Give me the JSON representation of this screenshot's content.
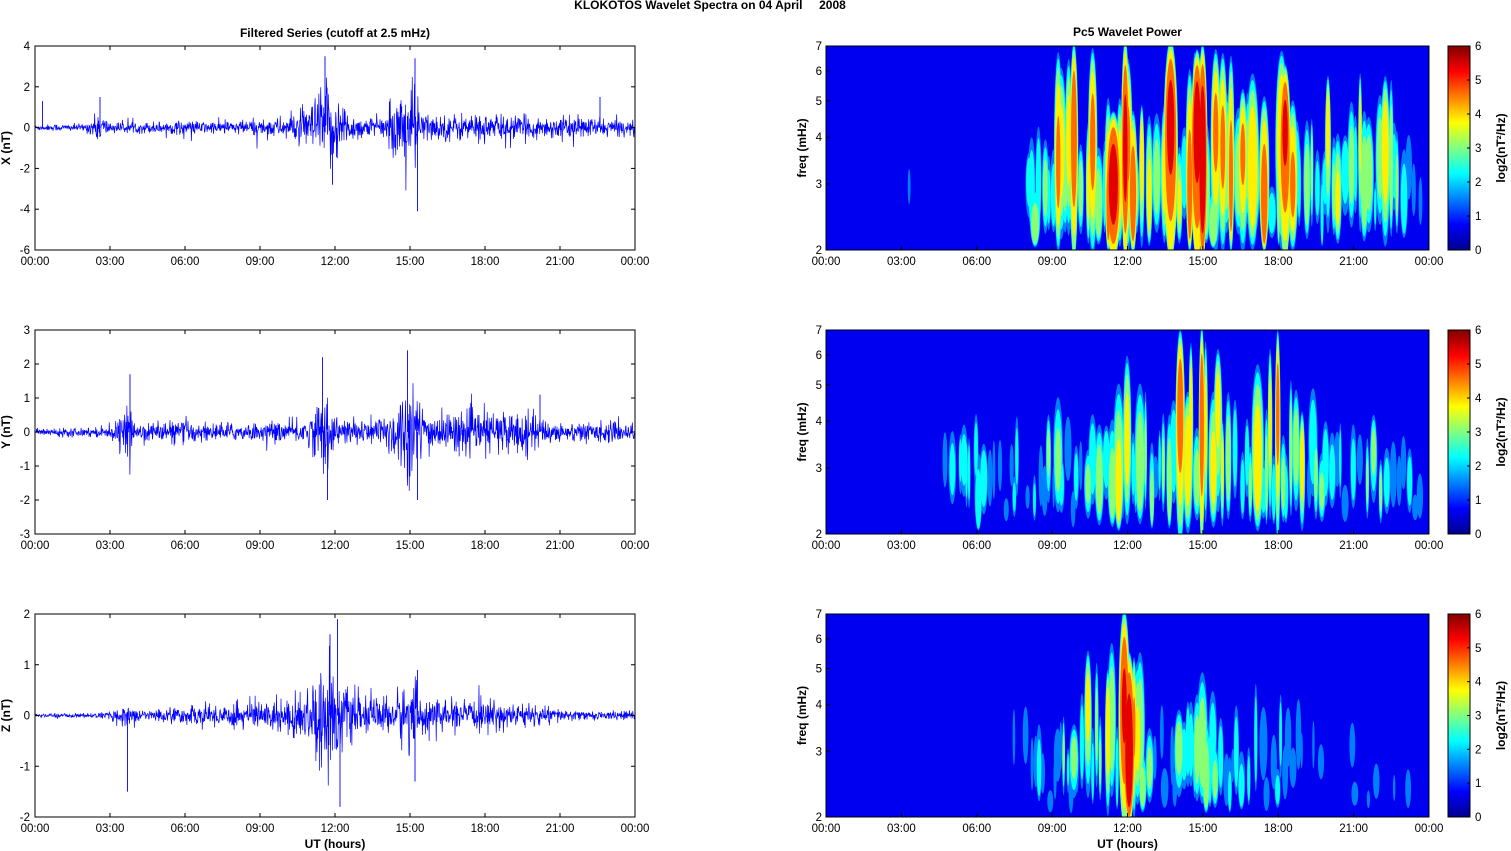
{
  "figure_title": "KLOKOTOS Wavelet Spectra on 04 April     2008",
  "colors": {
    "trace": "#0000ff",
    "frame": "#000000"
  },
  "chart_data": [
    {
      "type": "line",
      "title": "Filtered Series (cutoff at 2.5 mHz)",
      "ylabel": "X (nT)",
      "xlabel": "",
      "xlim": [
        "00:00",
        "24:00"
      ],
      "x_ticks": [
        "00:00",
        "03:00",
        "06:00",
        "09:00",
        "12:00",
        "15:00",
        "18:00",
        "21:00",
        "00:00"
      ],
      "ylim": [
        -6,
        4
      ],
      "y_ticks": [
        "-6",
        "-4",
        "-2",
        "0",
        "2",
        "4"
      ],
      "grid": false,
      "envelope": {
        "x_hours": [
          0,
          1,
          2,
          2.6,
          3,
          4,
          5,
          6,
          7,
          8,
          9,
          10,
          11,
          11.5,
          12,
          12.5,
          13,
          14,
          14.8,
          15.2,
          15.5,
          16,
          17,
          18,
          19,
          20,
          21,
          22,
          23,
          24
        ],
        "amplitude_nT": [
          0.15,
          0.2,
          0.2,
          0.9,
          0.3,
          0.3,
          0.35,
          0.4,
          0.35,
          0.4,
          0.5,
          0.6,
          1.2,
          2.5,
          2.2,
          1.0,
          0.6,
          0.6,
          2.6,
          2.5,
          0.9,
          0.7,
          0.8,
          0.8,
          0.7,
          0.6,
          0.6,
          0.6,
          0.5,
          0.4
        ]
      },
      "peaks": [
        {
          "t": 11.6,
          "v": 3.5
        },
        {
          "t": 11.9,
          "v": -2.8
        },
        {
          "t": 15.2,
          "v": 3.4
        },
        {
          "t": 15.3,
          "v": -4.1
        },
        {
          "t": 2.6,
          "v": 1.5
        },
        {
          "t": 0.3,
          "v": 1.3
        },
        {
          "t": 22.6,
          "v": 1.5
        }
      ]
    },
    {
      "type": "line",
      "title": "",
      "ylabel": "Y (nT)",
      "xlabel": "",
      "xlim": [
        "00:00",
        "24:00"
      ],
      "x_ticks": [
        "00:00",
        "03:00",
        "06:00",
        "09:00",
        "12:00",
        "15:00",
        "18:00",
        "21:00",
        "00:00"
      ],
      "ylim": [
        -3,
        3
      ],
      "y_ticks": [
        "-3",
        "-2",
        "-1",
        "0",
        "1",
        "2",
        "3"
      ],
      "grid": false,
      "envelope": {
        "x_hours": [
          0,
          1,
          2,
          3,
          3.8,
          4,
          5,
          6,
          7,
          8,
          9,
          10,
          11,
          11.6,
          12,
          13,
          14,
          14.8,
          15.2,
          15.6,
          16,
          17,
          18,
          19,
          20,
          21,
          22,
          23,
          24
        ],
        "amplitude_nT": [
          0.1,
          0.15,
          0.15,
          0.2,
          0.8,
          0.3,
          0.35,
          0.4,
          0.3,
          0.3,
          0.3,
          0.35,
          0.5,
          1.5,
          0.5,
          0.4,
          0.6,
          1.6,
          1.5,
          0.8,
          0.6,
          0.7,
          0.7,
          0.8,
          0.6,
          0.3,
          0.35,
          0.35,
          0.3
        ]
      },
      "peaks": [
        {
          "t": 3.8,
          "v": 1.7
        },
        {
          "t": 11.5,
          "v": 2.2
        },
        {
          "t": 11.7,
          "v": -2.0
        },
        {
          "t": 14.9,
          "v": 2.4
        },
        {
          "t": 15.3,
          "v": -2.0
        },
        {
          "t": 20.2,
          "v": 1.1
        }
      ]
    },
    {
      "type": "line",
      "title": "",
      "ylabel": "Z (nT)",
      "xlabel": "UT (hours)",
      "xlim": [
        "00:00",
        "24:00"
      ],
      "x_ticks": [
        "00:00",
        "03:00",
        "06:00",
        "09:00",
        "12:00",
        "15:00",
        "18:00",
        "21:00",
        "00:00"
      ],
      "ylim": [
        -2,
        2
      ],
      "y_ticks": [
        "-2",
        "-1",
        "0",
        "1",
        "2"
      ],
      "grid": false,
      "envelope": {
        "x_hours": [
          0,
          1,
          2,
          3,
          3.7,
          4,
          5,
          6,
          7,
          8,
          9,
          10,
          11,
          11.5,
          12,
          12.5,
          13,
          14,
          15,
          15.5,
          16,
          17,
          18,
          19,
          20,
          21,
          22,
          23,
          24
        ],
        "amplitude_nT": [
          0.04,
          0.05,
          0.05,
          0.08,
          0.3,
          0.12,
          0.15,
          0.2,
          0.25,
          0.3,
          0.35,
          0.4,
          0.7,
          1.2,
          1.2,
          0.6,
          0.4,
          0.4,
          0.8,
          0.5,
          0.35,
          0.3,
          0.35,
          0.3,
          0.25,
          0.15,
          0.1,
          0.1,
          0.1
        ]
      },
      "peaks": [
        {
          "t": 3.7,
          "v": -1.5
        },
        {
          "t": 11.8,
          "v": 1.6
        },
        {
          "t": 12.1,
          "v": 1.9
        },
        {
          "t": 12.2,
          "v": -1.8
        },
        {
          "t": 15.3,
          "v": 0.9
        },
        {
          "t": 15.2,
          "v": -1.3
        }
      ]
    },
    {
      "type": "heatmap",
      "title": "Pc5 Wavelet Power",
      "ylabel": "freq (mHz)",
      "xlabel": "",
      "xlim": [
        "00:00",
        "24:00"
      ],
      "x_ticks": [
        "00:00",
        "03:00",
        "06:00",
        "09:00",
        "12:00",
        "15:00",
        "18:00",
        "21:00",
        "00:00"
      ],
      "ylim_mHz": [
        2,
        7
      ],
      "y_scale": "log",
      "y_ticks": [
        "2",
        "3",
        "4",
        "5",
        "6",
        "7"
      ],
      "colorbar": {
        "label": "log2(nT²/Hz)",
        "range": [
          0,
          6
        ],
        "ticks": [
          "0",
          "1",
          "2",
          "3",
          "4",
          "5",
          "6"
        ],
        "colormap": "jet"
      },
      "activity": [
        {
          "t": [
            0,
            8
          ],
          "level": 0.25
        },
        {
          "t": 8,
          "level": 0.55
        },
        {
          "t": 9,
          "level": 0.75
        },
        {
          "t": 10,
          "level": 0.85
        },
        {
          "t": 11.5,
          "level": 1.0
        },
        {
          "t": 12,
          "level": 1.0
        },
        {
          "t": 13,
          "level": 0.8
        },
        {
          "t": 14,
          "level": 0.9
        },
        {
          "t": 15,
          "level": 1.0
        },
        {
          "t": 16,
          "level": 0.9
        },
        {
          "t": 17,
          "level": 0.9
        },
        {
          "t": 18,
          "level": 0.95
        },
        {
          "t": 19,
          "level": 0.8
        },
        {
          "t": 20,
          "level": 0.75
        },
        {
          "t": 21,
          "level": 0.7
        },
        {
          "t": 22,
          "level": 0.75
        },
        {
          "t": 23,
          "level": 0.7
        },
        {
          "t": 23.5,
          "level": 0.5
        }
      ]
    },
    {
      "type": "heatmap",
      "title": "",
      "ylabel": "freq (mHz)",
      "xlabel": "",
      "xlim": [
        "00:00",
        "24:00"
      ],
      "x_ticks": [
        "00:00",
        "03:00",
        "06:00",
        "09:00",
        "12:00",
        "15:00",
        "18:00",
        "21:00",
        "00:00"
      ],
      "ylim_mHz": [
        2,
        7
      ],
      "y_scale": "log",
      "y_ticks": [
        "2",
        "3",
        "4",
        "5",
        "6",
        "7"
      ],
      "colorbar": {
        "label": "log2(nT²/Hz)",
        "range": [
          0,
          6
        ],
        "ticks": [
          "0",
          "1",
          "2",
          "3",
          "4",
          "5",
          "6"
        ],
        "colormap": "jet"
      },
      "activity": [
        {
          "t": [
            0,
            4
          ],
          "level": 0.15
        },
        {
          "t": 4,
          "level": 0.3
        },
        {
          "t": 5,
          "level": 0.45
        },
        {
          "t": 6,
          "level": 0.5
        },
        {
          "t": 7,
          "level": 0.45
        },
        {
          "t": 8,
          "level": 0.45
        },
        {
          "t": 9,
          "level": 0.5
        },
        {
          "t": 10,
          "level": 0.55
        },
        {
          "t": 11,
          "level": 0.65
        },
        {
          "t": 12,
          "level": 0.75
        },
        {
          "t": 13,
          "level": 0.6
        },
        {
          "t": 14,
          "level": 0.8
        },
        {
          "t": 15,
          "level": 0.95
        },
        {
          "t": 16,
          "level": 0.8
        },
        {
          "t": 17,
          "level": 0.8
        },
        {
          "t": 18,
          "level": 0.9
        },
        {
          "t": 19,
          "level": 0.7
        },
        {
          "t": 20,
          "level": 0.45
        },
        {
          "t": 21,
          "level": 0.45
        },
        {
          "t": 22,
          "level": 0.55
        },
        {
          "t": 23,
          "level": 0.5
        },
        {
          "t": 23.5,
          "level": 0.35
        }
      ]
    },
    {
      "type": "heatmap",
      "title": "",
      "ylabel": "freq (mHz)",
      "xlabel": "UT (hours)",
      "xlim": [
        "00:00",
        "24:00"
      ],
      "x_ticks": [
        "00:00",
        "03:00",
        "06:00",
        "09:00",
        "12:00",
        "15:00",
        "18:00",
        "21:00",
        "00:00"
      ],
      "ylim_mHz": [
        2,
        7
      ],
      "y_scale": "log",
      "y_ticks": [
        "2",
        "3",
        "4",
        "5",
        "6",
        "7"
      ],
      "colorbar": {
        "label": "log2(nT²/Hz)",
        "range": [
          0,
          6
        ],
        "ticks": [
          "0",
          "1",
          "2",
          "3",
          "4",
          "5",
          "6"
        ],
        "colormap": "jet"
      },
      "activity": [
        {
          "t": [
            0,
            3.5
          ],
          "level": 0.05
        },
        {
          "t": 3.7,
          "level": 0.2
        },
        {
          "t": 5,
          "level": 0.1
        },
        {
          "t": 7,
          "level": 0.15
        },
        {
          "t": 8,
          "level": 0.45
        },
        {
          "t": 9,
          "level": 0.5
        },
        {
          "t": 10,
          "level": 0.55
        },
        {
          "t": 11,
          "level": 0.75
        },
        {
          "t": 11.8,
          "level": 0.95
        },
        {
          "t": 12.2,
          "level": 0.9
        },
        {
          "t": 13,
          "level": 0.5
        },
        {
          "t": 14,
          "level": 0.55
        },
        {
          "t": 15,
          "level": 0.75
        },
        {
          "t": 16,
          "level": 0.5
        },
        {
          "t": 17,
          "level": 0.5
        },
        {
          "t": 18,
          "level": 0.6
        },
        {
          "t": 19,
          "level": 0.45
        },
        {
          "t": 20,
          "level": 0.25
        },
        {
          "t": 21,
          "level": 0.3
        },
        {
          "t": 22,
          "level": 0.25
        },
        {
          "t": 23,
          "level": 0.3
        }
      ]
    }
  ]
}
